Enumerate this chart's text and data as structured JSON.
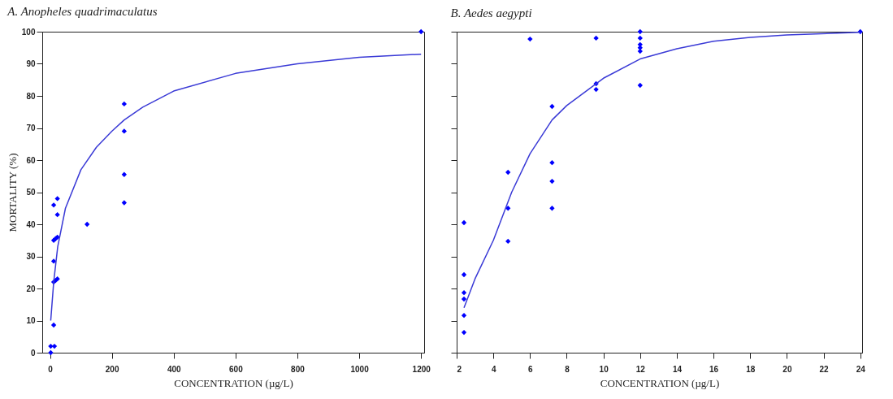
{
  "chart_data": [
    {
      "type": "scatter",
      "title": "A. Anopheles quadrimaculatus",
      "xlabel": "CONCENTRATION (µg/L)",
      "ylabel": "MORTALITY (%)",
      "xlim": [
        -25,
        1210
      ],
      "xticks": [
        0,
        200,
        400,
        600,
        800,
        1000,
        1200
      ],
      "ylim": [
        0,
        100
      ],
      "yticks": [
        0,
        10,
        20,
        30,
        40,
        50,
        60,
        70,
        80,
        90,
        100
      ],
      "marker": "diamond",
      "grid": false,
      "series": [
        {
          "color": "#0000ff",
          "x": [
            2.4,
            2.4,
            12,
            12,
            12,
            12,
            12,
            14.4,
            18,
            18,
            24,
            24,
            24,
            24,
            120,
            240,
            240,
            240,
            240,
            1200
          ],
          "values": [
            0,
            2,
            8.6,
            46,
            35,
            28.5,
            22,
            2,
            35.5,
            22.5,
            48,
            43,
            36,
            23,
            40,
            77.5,
            69,
            55.5,
            46.7,
            100
          ]
        },
        {
          "type": "line",
          "marker": "none",
          "color": "#3a3ad6",
          "x": [
            2.4,
            12,
            25,
            50,
            100,
            150,
            200,
            240,
            300,
            400,
            600,
            800,
            1000,
            1200
          ],
          "values": [
            10,
            22,
            33,
            45,
            57,
            64,
            69,
            72.5,
            76.5,
            81.5,
            87,
            90,
            92,
            93
          ]
        }
      ]
    },
    {
      "type": "scatter",
      "title": "B. Aedes aegypti",
      "xlabel": "CONCENTRATION (µg/L)",
      "xlim": [
        2,
        24.1
      ],
      "xticks": [
        2,
        4,
        6,
        8,
        10,
        12,
        14,
        16,
        18,
        20,
        22,
        24
      ],
      "ylim": [
        0,
        100
      ],
      "yticks": [
        0,
        10,
        20,
        30,
        40,
        50,
        60,
        70,
        80,
        90,
        100
      ],
      "tick_labels": "x",
      "marker": "diamond",
      "grid": false,
      "series": [
        {
          "color": "#0000ff",
          "x": [
            2.4,
            2.4,
            2.4,
            2.4,
            2.4,
            2.4,
            4.8,
            4.8,
            4.8,
            6,
            7.2,
            7.2,
            7.2,
            7.2,
            9.6,
            9.6,
            9.6,
            12,
            12,
            12,
            12,
            12,
            12,
            24
          ],
          "values": [
            40.5,
            24.3,
            18.7,
            16.7,
            11.6,
            6.3,
            56.2,
            45,
            34.7,
            97.7,
            76.7,
            59.2,
            53.4,
            45,
            98,
            83.8,
            82,
            100,
            98,
            96,
            95,
            93.9,
            83.3,
            100
          ]
        },
        {
          "type": "line",
          "marker": "none",
          "color": "#3a3ad6",
          "x": [
            2.4,
            3,
            4,
            5,
            6,
            7.2,
            8,
            10,
            12,
            14,
            16,
            18,
            20,
            24
          ],
          "values": [
            14,
            23,
            35,
            50,
            62,
            72.5,
            77,
            85.5,
            91.5,
            94.7,
            97,
            98.2,
            99,
            99.8
          ]
        }
      ]
    }
  ]
}
